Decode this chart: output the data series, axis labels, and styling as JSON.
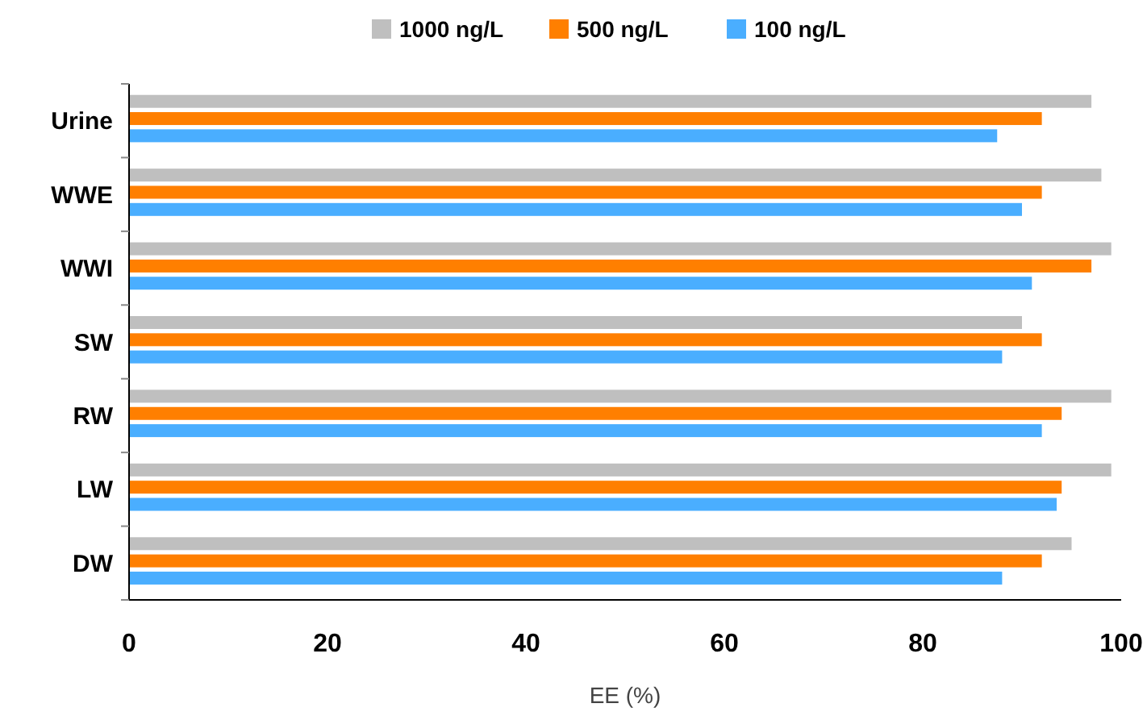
{
  "chart_data": {
    "type": "bar",
    "orientation": "horizontal",
    "xlabel": "EE (%)",
    "categories": [
      "Urine",
      "WWE",
      "WWI",
      "SW",
      "RW",
      "LW",
      "DW"
    ],
    "series": [
      {
        "name": "1000 ng/L",
        "color": "#bfbfbf",
        "values": [
          97,
          98,
          99,
          90,
          99,
          99,
          95
        ]
      },
      {
        "name": "500 ng/L",
        "color": "#ff7f00",
        "values": [
          92,
          92,
          97,
          92,
          94,
          94,
          92
        ]
      },
      {
        "name": "100 ng/L",
        "color": "#4aaeff",
        "values": [
          87.5,
          90,
          91,
          88,
          92,
          93.5,
          88
        ]
      }
    ],
    "xlim": [
      0,
      100
    ],
    "xticks": [
      0,
      20,
      40,
      60,
      80,
      100
    ],
    "grid": false,
    "legend": "top"
  }
}
